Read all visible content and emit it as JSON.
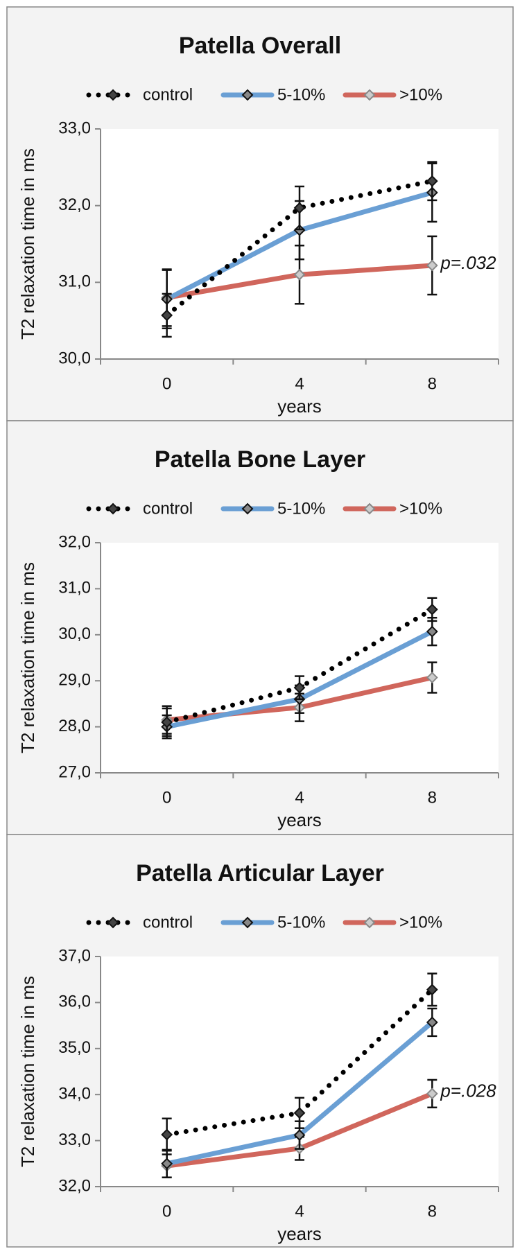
{
  "chart_data": [
    {
      "type": "line",
      "title": "Patella Overall",
      "x_label": "years",
      "y_label": "T2 relaxation time in ms",
      "legend": "top",
      "categories": [
        "0",
        "4",
        "8"
      ],
      "ylim": [
        30,
        33
      ],
      "yticks": [
        {
          "value": 30,
          "label": "30,0"
        },
        {
          "value": 31,
          "label": "31,0"
        },
        {
          "value": 32,
          "label": "32,0"
        },
        {
          "value": 33,
          "label": "33,0"
        }
      ],
      "series": [
        {
          "name": "control",
          "color": "#000000",
          "values": [
            30.57,
            31.97,
            32.32
          ],
          "errors": [
            0.28,
            0.28,
            0.25
          ]
        },
        {
          "name": "5-10%",
          "color": "#6a9fd4",
          "values": [
            30.78,
            31.68,
            32.17
          ],
          "errors": [
            0.38,
            0.38,
            0.38
          ]
        },
        {
          "name": ">10%",
          "color": "#d0665c",
          "values": [
            30.8,
            31.1,
            31.22
          ],
          "errors": [
            0.37,
            0.38,
            0.38
          ]
        }
      ],
      "annotation": "p=.032"
    },
    {
      "type": "line",
      "title": "Patella Bone Layer",
      "x_label": "years",
      "y_label": "T2 relaxation time in ms",
      "legend": "top",
      "categories": [
        "0",
        "4",
        "8"
      ],
      "ylim": [
        27,
        32
      ],
      "yticks": [
        {
          "value": 27,
          "label": "27,0"
        },
        {
          "value": 28,
          "label": "28,0"
        },
        {
          "value": 29,
          "label": "29,0"
        },
        {
          "value": 30,
          "label": "30,0"
        },
        {
          "value": 31,
          "label": "31,0"
        },
        {
          "value": 32,
          "label": "32,0"
        }
      ],
      "series": [
        {
          "name": "control",
          "color": "#000000",
          "values": [
            28.1,
            28.85,
            30.55
          ],
          "errors": [
            0.3,
            0.25,
            0.25
          ]
        },
        {
          "name": "5-10%",
          "color": "#6a9fd4",
          "values": [
            28.0,
            28.6,
            30.07
          ],
          "errors": [
            0.25,
            0.3,
            0.3
          ]
        },
        {
          "name": ">10%",
          "color": "#d0665c",
          "values": [
            28.15,
            28.42,
            29.07
          ],
          "errors": [
            0.3,
            0.3,
            0.33
          ]
        }
      ]
    },
    {
      "type": "line",
      "title": "Patella Articular Layer",
      "x_label": "years",
      "y_label": "T2 relaxation time in ms",
      "legend": "top",
      "categories": [
        "0",
        "4",
        "8"
      ],
      "ylim": [
        32,
        37
      ],
      "yticks": [
        {
          "value": 32,
          "label": "32,0"
        },
        {
          "value": 33,
          "label": "33,0"
        },
        {
          "value": 34,
          "label": "34,0"
        },
        {
          "value": 35,
          "label": "35,0"
        },
        {
          "value": 36,
          "label": "36,0"
        },
        {
          "value": 37,
          "label": "37,0"
        }
      ],
      "series": [
        {
          "name": "control",
          "color": "#000000",
          "values": [
            33.13,
            33.6,
            36.28
          ],
          "errors": [
            0.35,
            0.33,
            0.35
          ]
        },
        {
          "name": "5-10%",
          "color": "#6a9fd4",
          "values": [
            32.5,
            33.12,
            35.57
          ],
          "errors": [
            0.3,
            0.3,
            0.3
          ]
        },
        {
          "name": ">10%",
          "color": "#d0665c",
          "values": [
            32.45,
            32.83,
            34.02
          ],
          "errors": [
            0.25,
            0.25,
            0.3
          ]
        }
      ],
      "annotation": "p=.028"
    }
  ]
}
